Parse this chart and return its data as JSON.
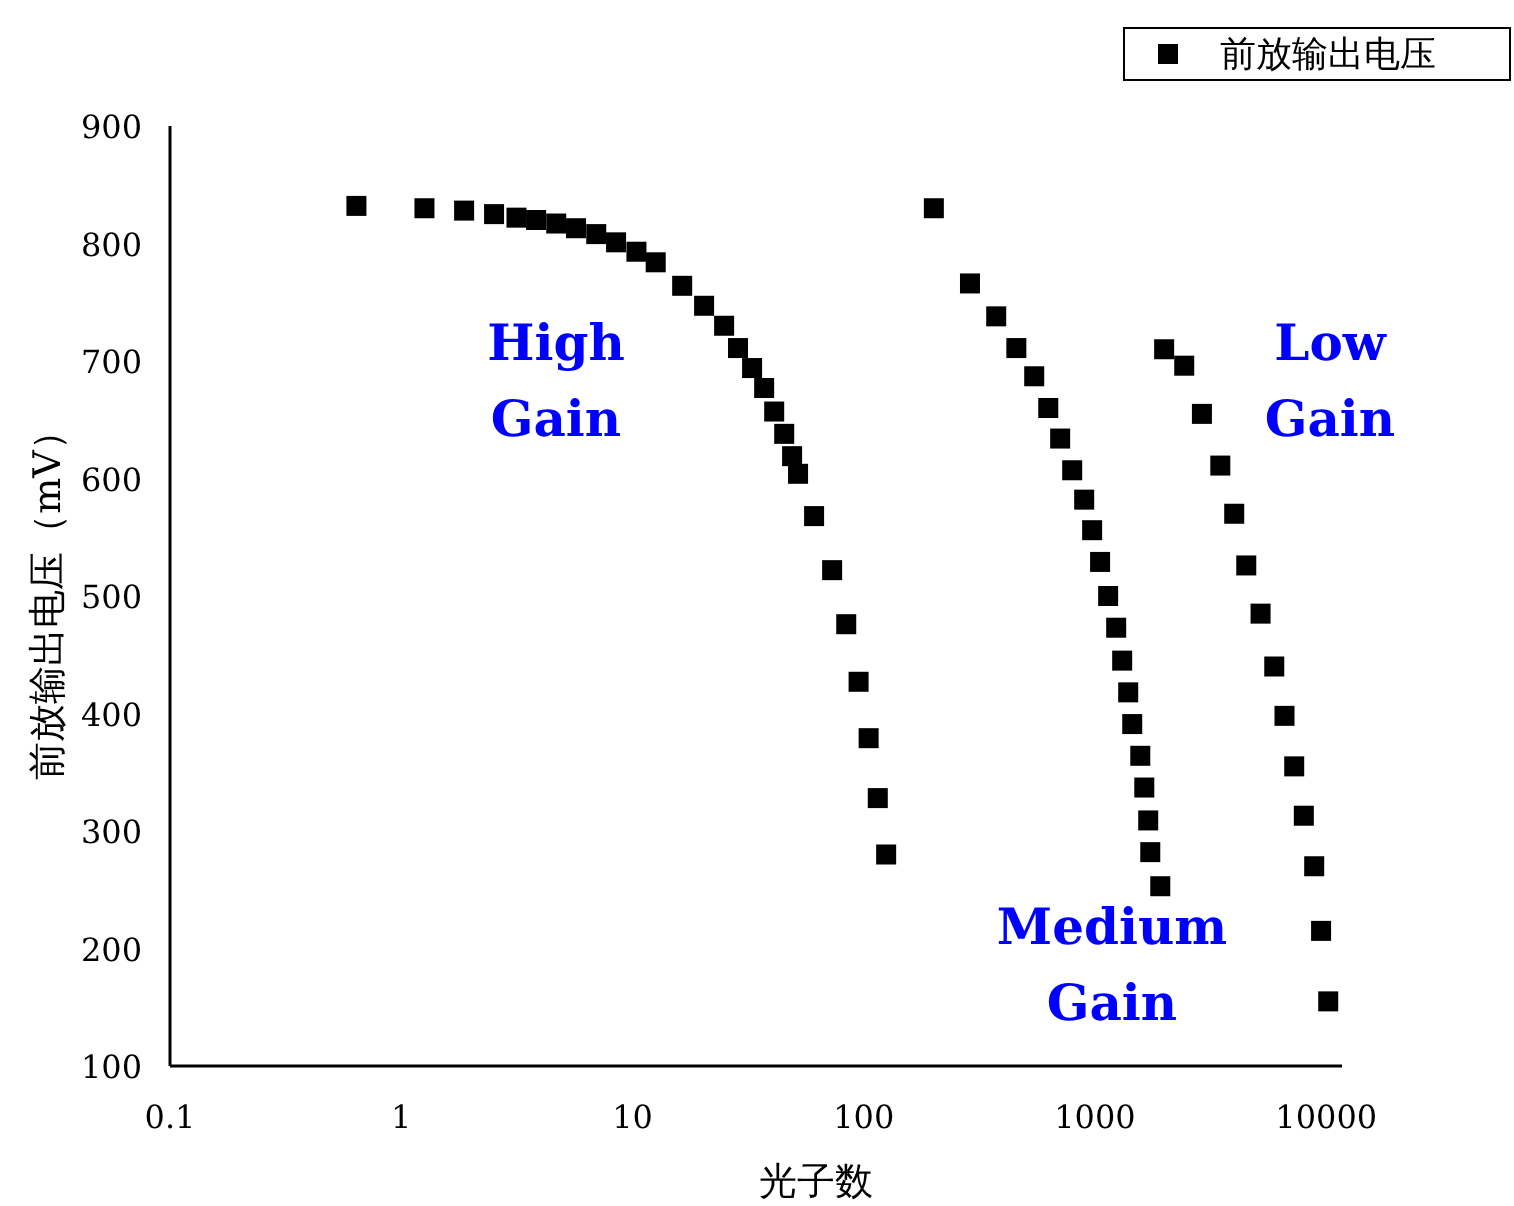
{
  "chart_data": {
    "type": "scatter",
    "xlabel": "光子数",
    "ylabel": "前放输出电压（mV）",
    "log": "x",
    "xlim": [
      0.1,
      11700
    ],
    "ylim": [
      100,
      900
    ],
    "xticks": [
      0.1,
      1,
      10,
      100,
      1000,
      10000
    ],
    "yticks": [
      100,
      200,
      300,
      400,
      500,
      600,
      700,
      800,
      900
    ],
    "grid": false,
    "legend": "top right",
    "marker": "square",
    "series": [
      {
        "name": "前放输出电压",
        "color": "#000000",
        "x": [
          0.64,
          1.26,
          1.87,
          2.52,
          3.15,
          3.83,
          4.68,
          5.7,
          6.97,
          8.49,
          10.4,
          12.6,
          16.4,
          20.4,
          24.9,
          28.6,
          32.9,
          37.1,
          41,
          45.3,
          49,
          52,
          61,
          73,
          84,
          95,
          105,
          115,
          125,
          201,
          288,
          374,
          457,
          546,
          628,
          707,
          797,
          898,
          972,
          1052,
          1140,
          1235,
          1311,
          1392,
          1449,
          1570,
          1634,
          1699,
          1734,
          1916,
          1991,
          2432,
          2900,
          3483,
          4000,
          4510,
          5200,
          5960,
          6600,
          7270,
          8000,
          8870,
          9500,
          10200
        ],
        "values": [
          832,
          830,
          828,
          825,
          822,
          820,
          817,
          813,
          808,
          801,
          793,
          784,
          764,
          747,
          730,
          711,
          694,
          677,
          657,
          638,
          619,
          604,
          568,
          522,
          476,
          427,
          379,
          328,
          280,
          830,
          766,
          738,
          711,
          687,
          660,
          634,
          607,
          582,
          556,
          529,
          500,
          473,
          445,
          418,
          391,
          364,
          337,
          309,
          282,
          253,
          710,
          696,
          655,
          611,
          570,
          526,
          485,
          440,
          398,
          355,
          313,
          270,
          215,
          155
        ]
      }
    ],
    "annotations": [
      "High\nGain",
      "Medium\nGain",
      "Low\nGain"
    ]
  }
}
